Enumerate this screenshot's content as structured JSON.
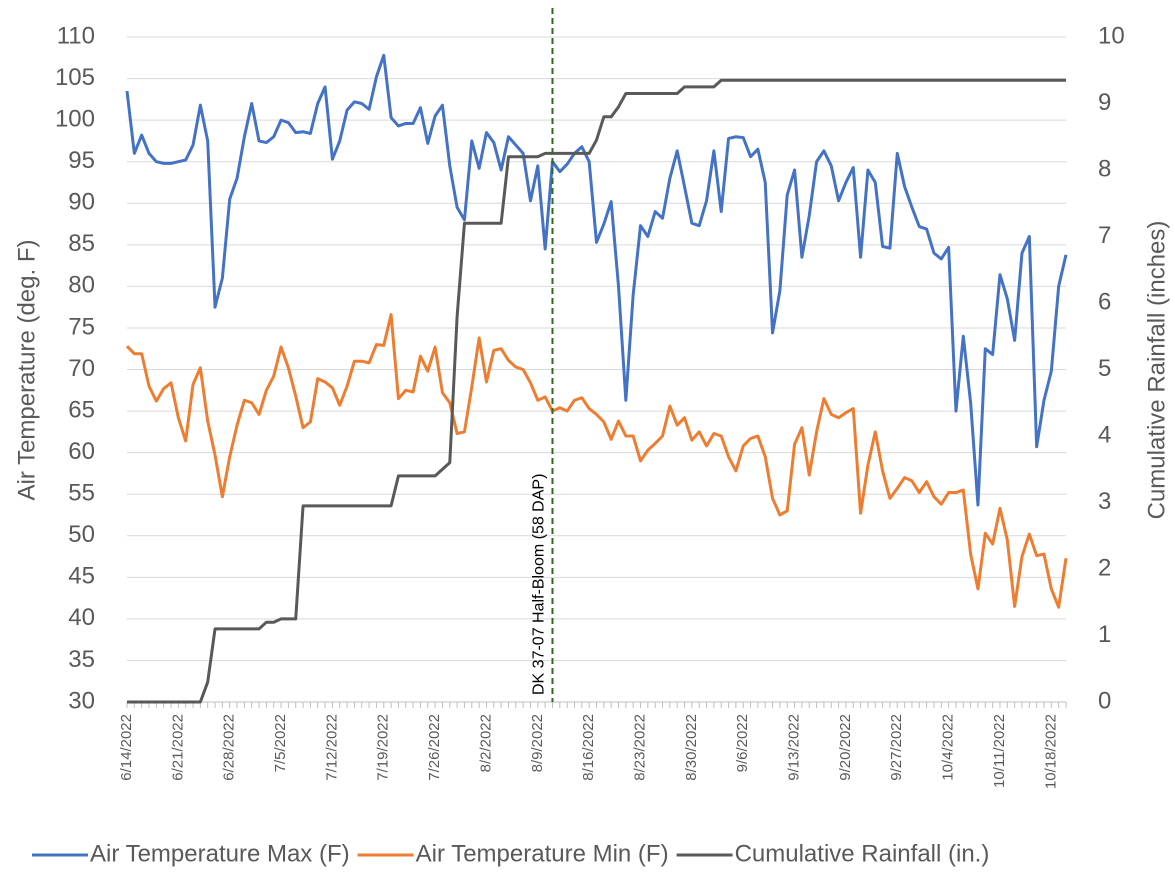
{
  "chart_data": {
    "type": "line",
    "y_title": "Air Temperature (deg. F)",
    "y2_title": "Cumulative Rainfall (inches)",
    "ylim": [
      30,
      110
    ],
    "yticks": [
      30,
      35,
      40,
      45,
      50,
      55,
      60,
      65,
      70,
      75,
      80,
      85,
      90,
      95,
      100,
      105,
      110
    ],
    "y2lim": [
      0,
      10
    ],
    "y2ticks": [
      0,
      1,
      2,
      3,
      4,
      5,
      6,
      7,
      8,
      9,
      10
    ],
    "grid": true,
    "legend": "bottom",
    "annotation": {
      "text": "DK 37-07 Half-Bloom (58 DAP)",
      "category_index": 58,
      "color": "#2e6b1f"
    },
    "categories": [
      "6/14/2022",
      null,
      null,
      null,
      null,
      null,
      null,
      "6/21/2022",
      null,
      null,
      null,
      null,
      null,
      null,
      "6/28/2022",
      null,
      null,
      null,
      null,
      null,
      null,
      "7/5/2022",
      null,
      null,
      null,
      null,
      null,
      null,
      "7/12/2022",
      null,
      null,
      null,
      null,
      null,
      null,
      "7/19/2022",
      null,
      null,
      null,
      null,
      null,
      null,
      "7/26/2022",
      null,
      null,
      null,
      null,
      null,
      null,
      "8/2/2022",
      null,
      null,
      null,
      null,
      null,
      null,
      "8/9/2022",
      null,
      null,
      null,
      null,
      null,
      null,
      "8/16/2022",
      null,
      null,
      null,
      null,
      null,
      null,
      "8/23/2022",
      null,
      null,
      null,
      null,
      null,
      null,
      "8/30/2022",
      null,
      null,
      null,
      null,
      null,
      null,
      "9/6/2022",
      null,
      null,
      null,
      null,
      null,
      null,
      "9/13/2022",
      null,
      null,
      null,
      null,
      null,
      null,
      "9/20/2022",
      null,
      null,
      null,
      null,
      null,
      null,
      "9/27/2022",
      null,
      null,
      null,
      null,
      null,
      null,
      "10/4/2022",
      null,
      null,
      null,
      null,
      null,
      null,
      "10/11/2022",
      null,
      null,
      null,
      null,
      null,
      null,
      "10/18/2022",
      null,
      null
    ],
    "series": [
      {
        "name": "Air Temperature Max (F)",
        "color": "#4472c4",
        "values": [
          103.5,
          96,
          98.2,
          96,
          95,
          94.8,
          94.8,
          95,
          95.2,
          97,
          101.8,
          97.5,
          77.5,
          81,
          90.5,
          93,
          98,
          102,
          97.5,
          97.3,
          98,
          100,
          99.7,
          98.5,
          98.6,
          98.4,
          102,
          104,
          95.3,
          97.5,
          101.2,
          102.2,
          102,
          101.3,
          105.2,
          107.8,
          100.3,
          99.3,
          99.6,
          99.6,
          101.5,
          97.2,
          100.5,
          101.8,
          94.5,
          89.5,
          88,
          97.5,
          94.2,
          98.5,
          97.3,
          94,
          98,
          97,
          96,
          90.3,
          94.5,
          84.5,
          95,
          93.8,
          94.7,
          96,
          96.8,
          95,
          85.3,
          87.5,
          90.2,
          80,
          66.3,
          79,
          87.3,
          86,
          89,
          88.2,
          93,
          96.3,
          92,
          87.6,
          87.3,
          90.3,
          96.3,
          89,
          97.8,
          98,
          97.9,
          95.6,
          96.5,
          92.5,
          74.4,
          79.5,
          91,
          94,
          83.5,
          88.5,
          95,
          96.3,
          94.5,
          90.3,
          92.5,
          94.3,
          83.5,
          94,
          92.5,
          84.8,
          84.6,
          96,
          92,
          89.5,
          87.2,
          86.9,
          84,
          83.3,
          84.7,
          65,
          74,
          66,
          53.7,
          72.5,
          71.8,
          81.4,
          78.5,
          73.5,
          84,
          86,
          60.7,
          66.3,
          69.8,
          80,
          83.8
        ]
      },
      {
        "name": "Air Temperature Min (F)",
        "color": "#ed7d31",
        "values": [
          72.8,
          71.9,
          71.9,
          68,
          66.2,
          67.7,
          68.4,
          64.2,
          61.4,
          68.2,
          70.2,
          63.8,
          59.7,
          54.7,
          59.5,
          63.3,
          66.3,
          66,
          64.6,
          67.5,
          69.2,
          72.7,
          70.2,
          66.8,
          63,
          63.7,
          68.9,
          68.5,
          67.8,
          65.7,
          68,
          71,
          71,
          70.8,
          73,
          72.9,
          76.6,
          66.5,
          67.5,
          67.3,
          71.6,
          69.8,
          72.7,
          67.2,
          66,
          62.3,
          62.5,
          67.9,
          73.8,
          68.5,
          72.3,
          72.5,
          71.1,
          70.3,
          70,
          68.4,
          66.3,
          66.7,
          65,
          65.4,
          65,
          66.3,
          66.6,
          65.3,
          64.6,
          63.7,
          61.6,
          63.8,
          62,
          62,
          59,
          60.3,
          61.1,
          62,
          65.6,
          63.3,
          64.2,
          61.5,
          62.5,
          60.8,
          62.3,
          62,
          59.5,
          57.8,
          60.8,
          61.7,
          62,
          59.5,
          54.5,
          52.5,
          53,
          61,
          63,
          57.3,
          62.5,
          66.5,
          64.6,
          64.2,
          64.8,
          65.3,
          52.7,
          58.5,
          62.5,
          57.8,
          54.5,
          55.7,
          57,
          56.6,
          55.2,
          56.5,
          54.7,
          53.8,
          55.2,
          55.2,
          55.5,
          47.8,
          43.6,
          50.3,
          49,
          53.3,
          49.5,
          41.5,
          47.5,
          50.2,
          47.6,
          47.8,
          43.6,
          41.4,
          47.3
        ]
      },
      {
        "name": "Cumulative Rainfall (in.)",
        "color": "#595959",
        "axis": "y2",
        "values": [
          0,
          0,
          0,
          0,
          0,
          0,
          0,
          0,
          0,
          0,
          0,
          0.3,
          1.1,
          1.1,
          1.1,
          1.1,
          1.1,
          1.1,
          1.1,
          1.2,
          1.2,
          1.25,
          1.25,
          1.25,
          2.95,
          2.95,
          2.95,
          2.95,
          2.95,
          2.95,
          2.95,
          2.95,
          2.95,
          2.95,
          2.95,
          2.95,
          2.95,
          3.4,
          3.4,
          3.4,
          3.4,
          3.4,
          3.4,
          3.5,
          3.6,
          5.8,
          7.2,
          7.2,
          7.2,
          7.2,
          7.2,
          7.2,
          8.2,
          8.2,
          8.2,
          8.2,
          8.2,
          8.25,
          8.25,
          8.25,
          8.25,
          8.25,
          8.25,
          8.25,
          8.45,
          8.8,
          8.8,
          8.95,
          9.15,
          9.15,
          9.15,
          9.15,
          9.15,
          9.15,
          9.15,
          9.15,
          9.25,
          9.25,
          9.25,
          9.25,
          9.25,
          9.35,
          9.35,
          9.35,
          9.35,
          9.35,
          9.35,
          9.35,
          9.35,
          9.35,
          9.35,
          9.35,
          9.35,
          9.35,
          9.35,
          9.35,
          9.35,
          9.35,
          9.35,
          9.35,
          9.35,
          9.35,
          9.35,
          9.35,
          9.35,
          9.35,
          9.35,
          9.35,
          9.35,
          9.35,
          9.35,
          9.35,
          9.35,
          9.35,
          9.35,
          9.35,
          9.35,
          9.35,
          9.35,
          9.35,
          9.35,
          9.35,
          9.35,
          9.35,
          9.35,
          9.35,
          9.35,
          9.35,
          9.35
        ]
      }
    ]
  }
}
